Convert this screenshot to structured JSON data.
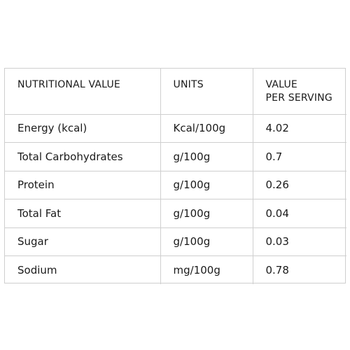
{
  "table": {
    "headers": {
      "col1": "NUTRITIONAL VALUE",
      "col2": "UNITS",
      "col3_line1": "VALUE",
      "col3_line2": "PER SERVING"
    },
    "rows": [
      {
        "name": "Energy (kcal)",
        "unit": "Kcal/100g",
        "value": "4.02"
      },
      {
        "name": "Total Carbohydrates",
        "unit": "g/100g",
        "value": "0.7"
      },
      {
        "name": "Protein",
        "unit": "g/100g",
        "value": "0.26"
      },
      {
        "name": "Total Fat",
        "unit": "g/100g",
        "value": "0.04"
      },
      {
        "name": "Sugar",
        "unit": "g/100g",
        "value": "0.03"
      },
      {
        "name": "Sodium",
        "unit": "mg/100g",
        "value": "0.78"
      }
    ]
  }
}
